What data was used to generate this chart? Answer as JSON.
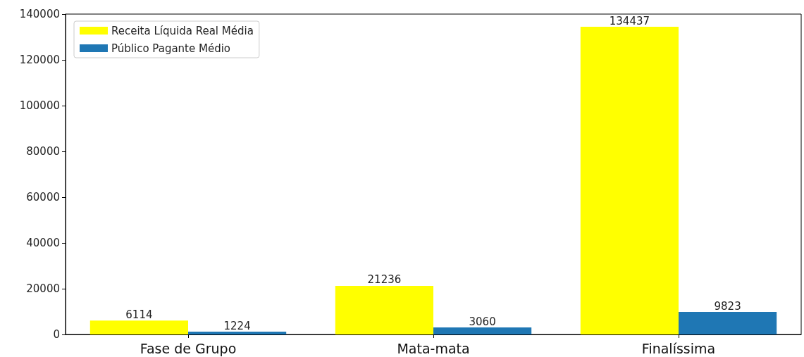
{
  "chart_data": {
    "type": "bar",
    "categories": [
      "Fase de Grupo",
      "Mata-mata",
      "Finalíssima"
    ],
    "series": [
      {
        "name": "Receita Líquida Real Média",
        "color": "#ffff00",
        "values": [
          6114,
          21236,
          134437
        ]
      },
      {
        "name": "Público Pagante Médio",
        "color": "#1f77b4",
        "values": [
          1224,
          3060,
          9823
        ]
      }
    ],
    "ylim": [
      0,
      140000
    ],
    "yticks": [
      0,
      20000,
      40000,
      60000,
      80000,
      100000,
      120000,
      140000
    ],
    "data_labels": true,
    "legend": "top left",
    "grid": false
  }
}
